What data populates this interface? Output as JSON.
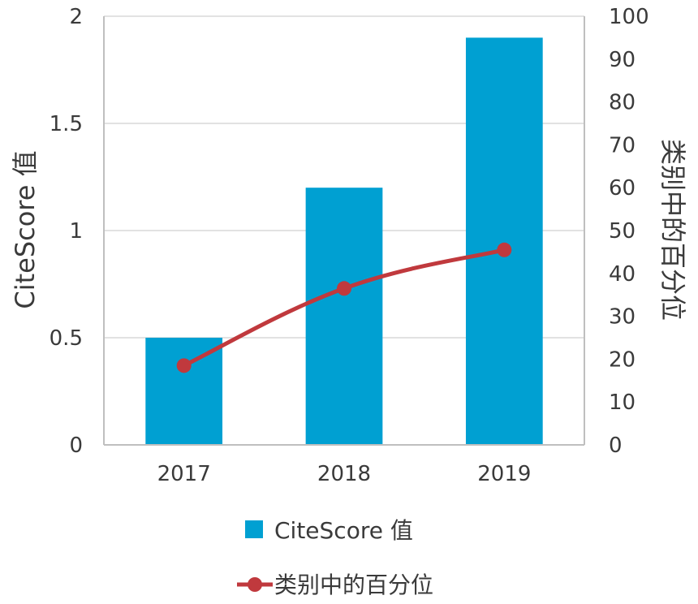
{
  "chart_data": {
    "type": "bar+line",
    "categories": [
      "2017",
      "2018",
      "2019"
    ],
    "series": [
      {
        "name": "CiteScore 值",
        "type": "bar",
        "axis": "left",
        "values": [
          0.5,
          1.2,
          1.9
        ],
        "color": "#00a0d2"
      },
      {
        "name": "类别中的百分位",
        "type": "line",
        "axis": "right",
        "values": [
          18.5,
          36.5,
          45.5
        ],
        "color": "#c0393d"
      }
    ],
    "y_left": {
      "label": "CiteScore 值",
      "lim": [
        0,
        2
      ],
      "ticks": [
        0,
        0.5,
        1,
        1.5,
        2
      ],
      "tick_labels": [
        "0",
        "0.5",
        "1",
        "1.5",
        "2"
      ]
    },
    "y_right": {
      "label": "类别中的百分位",
      "lim": [
        0,
        100
      ],
      "ticks": [
        0,
        10,
        20,
        30,
        40,
        50,
        60,
        70,
        80,
        90,
        100
      ],
      "tick_labels": [
        "0",
        "10",
        "20",
        "30",
        "40",
        "50",
        "60",
        "70",
        "80",
        "90",
        "100"
      ]
    },
    "grid": true,
    "legend": "bottom"
  }
}
